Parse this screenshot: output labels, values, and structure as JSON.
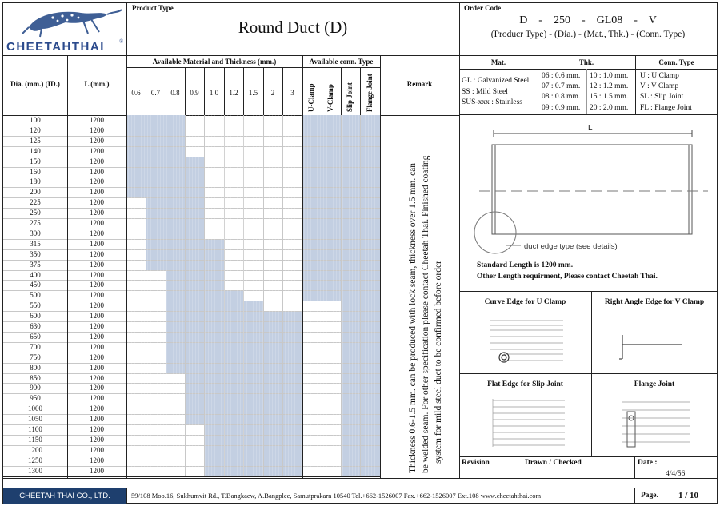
{
  "brand": {
    "name": "CHEETAHTHAI",
    "reg": "®"
  },
  "product": {
    "label": "Product Type",
    "title": "Round Duct (D)"
  },
  "order": {
    "label": "Order Code",
    "code": "D    -    250    -    GL08    -    V",
    "legend": "(Producr Type) - (Dia.) - (Mat., Thk.) - (Conn. Type)"
  },
  "table": {
    "dia_header": "Dia. (mm.) (ID.)",
    "len_header": "L (mm.)",
    "mat_header": "Available Material and Thickness (mm.)",
    "conn_header": "Available conn. Type",
    "remark_header": "Remark",
    "thicknesses": [
      "0.6",
      "0.7",
      "0.8",
      "0.9",
      "1.0",
      "1.2",
      "1.5",
      "2",
      "3"
    ],
    "conn_types": [
      "U-Clamp",
      "V-Clamp",
      "Slip Joint",
      "Flange Joint"
    ],
    "rows": [
      {
        "dia": "100",
        "len": "1200",
        "t": [
          0,
          2
        ],
        "c": [
          0,
          3
        ]
      },
      {
        "dia": "120",
        "len": "1200",
        "t": [
          0,
          2
        ],
        "c": [
          0,
          3
        ]
      },
      {
        "dia": "125",
        "len": "1200",
        "t": [
          0,
          2
        ],
        "c": [
          0,
          3
        ]
      },
      {
        "dia": "140",
        "len": "1200",
        "t": [
          0,
          2
        ],
        "c": [
          0,
          3
        ]
      },
      {
        "dia": "150",
        "len": "1200",
        "t": [
          0,
          3
        ],
        "c": [
          0,
          3
        ]
      },
      {
        "dia": "160",
        "len": "1200",
        "t": [
          0,
          3
        ],
        "c": [
          0,
          3
        ]
      },
      {
        "dia": "180",
        "len": "1200",
        "t": [
          0,
          3
        ],
        "c": [
          0,
          3
        ]
      },
      {
        "dia": "200",
        "len": "1200",
        "t": [
          0,
          3
        ],
        "c": [
          0,
          3
        ]
      },
      {
        "dia": "225",
        "len": "1200",
        "t": [
          1,
          3
        ],
        "c": [
          0,
          3
        ]
      },
      {
        "dia": "250",
        "len": "1200",
        "t": [
          1,
          3
        ],
        "c": [
          0,
          3
        ]
      },
      {
        "dia": "275",
        "len": "1200",
        "t": [
          1,
          3
        ],
        "c": [
          0,
          3
        ]
      },
      {
        "dia": "300",
        "len": "1200",
        "t": [
          1,
          3
        ],
        "c": [
          0,
          3
        ]
      },
      {
        "dia": "315",
        "len": "1200",
        "t": [
          1,
          4
        ],
        "c": [
          0,
          3
        ]
      },
      {
        "dia": "350",
        "len": "1200",
        "t": [
          1,
          4
        ],
        "c": [
          0,
          3
        ]
      },
      {
        "dia": "375",
        "len": "1200",
        "t": [
          1,
          4
        ],
        "c": [
          0,
          3
        ]
      },
      {
        "dia": "400",
        "len": "1200",
        "t": [
          2,
          4
        ],
        "c": [
          0,
          3
        ]
      },
      {
        "dia": "450",
        "len": "1200",
        "t": [
          2,
          4
        ],
        "c": [
          0,
          3
        ]
      },
      {
        "dia": "500",
        "len": "1200",
        "t": [
          2,
          5
        ],
        "c": [
          0,
          3
        ]
      },
      {
        "dia": "550",
        "len": "1200",
        "t": [
          2,
          6
        ],
        "c": [
          2,
          3
        ]
      },
      {
        "dia": "600",
        "len": "1200",
        "t": [
          2,
          8
        ],
        "c": [
          2,
          3
        ]
      },
      {
        "dia": "630",
        "len": "1200",
        "t": [
          2,
          8
        ],
        "c": [
          2,
          3
        ]
      },
      {
        "dia": "650",
        "len": "1200",
        "t": [
          2,
          8
        ],
        "c": [
          2,
          3
        ]
      },
      {
        "dia": "700",
        "len": "1200",
        "t": [
          2,
          8
        ],
        "c": [
          2,
          3
        ]
      },
      {
        "dia": "750",
        "len": "1200",
        "t": [
          2,
          8
        ],
        "c": [
          2,
          3
        ]
      },
      {
        "dia": "800",
        "len": "1200",
        "t": [
          2,
          8
        ],
        "c": [
          2,
          3
        ]
      },
      {
        "dia": "850",
        "len": "1200",
        "t": [
          3,
          8
        ],
        "c": [
          2,
          3
        ]
      },
      {
        "dia": "900",
        "len": "1200",
        "t": [
          3,
          8
        ],
        "c": [
          2,
          3
        ]
      },
      {
        "dia": "950",
        "len": "1200",
        "t": [
          3,
          8
        ],
        "c": [
          2,
          3
        ]
      },
      {
        "dia": "1000",
        "len": "1200",
        "t": [
          3,
          8
        ],
        "c": [
          2,
          3
        ]
      },
      {
        "dia": "1050",
        "len": "1200",
        "t": [
          3,
          8
        ],
        "c": [
          2,
          3
        ]
      },
      {
        "dia": "1100",
        "len": "1200",
        "t": [
          4,
          8
        ],
        "c": [
          2,
          3
        ]
      },
      {
        "dia": "1150",
        "len": "1200",
        "t": [
          4,
          8
        ],
        "c": [
          2,
          3
        ]
      },
      {
        "dia": "1200",
        "len": "1200",
        "t": [
          4,
          8
        ],
        "c": [
          2,
          3
        ]
      },
      {
        "dia": "1250",
        "len": "1200",
        "t": [
          4,
          8
        ],
        "c": [
          2,
          3
        ]
      },
      {
        "dia": "1300",
        "len": "1200",
        "t": [
          4,
          8
        ],
        "c": [
          2,
          3
        ]
      }
    ],
    "remark": [
      "Thickness 0.6-1.5 mm.  can be produced with lock seam,  thickness over 1.5 mm. can",
      "be welded seam. For other specification please contact Cheetah Thai. Finished coating",
      "system for mild steel duct to be confirmed before order"
    ]
  },
  "legend": {
    "mat_header": "Mat.",
    "thk_header": "Thk.",
    "conn_header": "Conn. Type",
    "mat": [
      "GL : Galvanized Steel",
      "SS : Mild Steel",
      "SUS-xxx : Stainless"
    ],
    "thk1": [
      "06 : 0.6 mm.",
      "07 : 0.7 mm.",
      "08 : 0.8 mm.",
      "09 : 0.9 mm."
    ],
    "thk2": [
      "10 : 1.0 mm.",
      "12 : 1.2 mm.",
      "15 : 1.5 mm.",
      "20 : 2.0 mm."
    ],
    "conn": [
      "U : U Clamp",
      "V : V Clamp",
      "SL : Slip Joint",
      "FL : Flange Joint"
    ]
  },
  "drawing": {
    "length_label": "L",
    "edge_note": "duct edge type (see details)",
    "std_length": "Standard Length is 1200 mm.",
    "other_length": "Other Length requirment, Please contact Cheetah Thai."
  },
  "details": {
    "u_clamp": "Curve Edge for U Clamp",
    "v_clamp": "Right Angle Edge for V Clamp",
    "slip": "Flat Edge for Slip Joint",
    "flange": "Flange Joint"
  },
  "revision": {
    "revision": "Revision",
    "drawn": "Drawn / Checked",
    "date_label": "Date :",
    "date": "4/4/56"
  },
  "footer": {
    "company": "CHEETAH THAI CO., LTD.",
    "address": "59/108 Moo.16, Sukhumvit Rd., T.Bangkaew, A.Bangplee, Samutprakarn 10540   Tel.+662-1526007 Fax.+662-1526007 Ext.108   www.cheetahthai.com",
    "page_label": "Page.",
    "page": "1 / 10"
  },
  "colors": {
    "avail": "#c3cfe2",
    "footer_bg": "#1e3f6e",
    "brand_blue": "#2b4a8c"
  }
}
